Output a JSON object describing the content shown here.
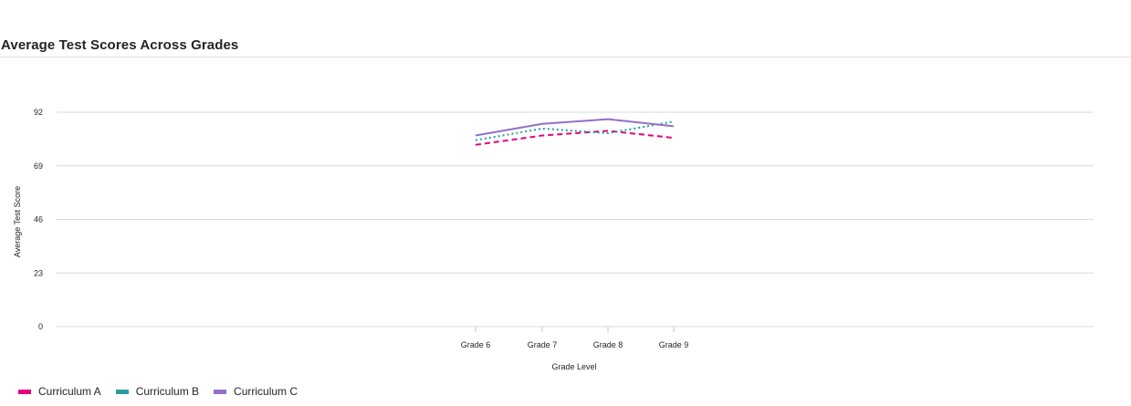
{
  "header": {
    "title": "Average Test Scores Across Grades"
  },
  "chart_data": {
    "type": "line",
    "title": "Average Test Scores Across Grades",
    "xlabel": "Grade Level",
    "ylabel": "Average Test Score",
    "categories": [
      "Grade 6",
      "Grade 7",
      "Grade 8",
      "Grade 9"
    ],
    "yticks": [
      0,
      23,
      46,
      69,
      92
    ],
    "ylim": [
      0,
      92
    ],
    "grid": true,
    "legend_position": "bottom-left",
    "series": [
      {
        "name": "Curriculum A",
        "color": "#e6007e",
        "dash": "dashed",
        "values": [
          78,
          82,
          84,
          81
        ]
      },
      {
        "name": "Curriculum B",
        "color": "#2a9d9f",
        "dash": "dotted",
        "values": [
          80,
          85,
          83,
          88
        ]
      },
      {
        "name": "Curriculum C",
        "color": "#9370c6",
        "dash": "solid",
        "values": [
          82,
          87,
          89,
          86
        ]
      }
    ]
  }
}
